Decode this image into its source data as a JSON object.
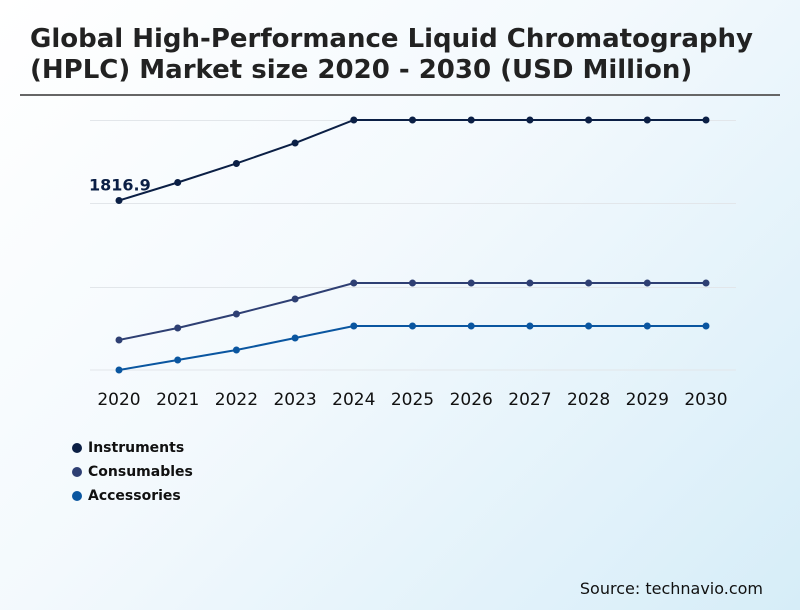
{
  "chart_data": {
    "type": "line",
    "title": "Global High-Performance Liquid Chromatography (HPLC) Market size 2020 - 2030 (USD Million)",
    "x": [
      "2020",
      "2021",
      "2022",
      "2023",
      "2024",
      "2025",
      "2026",
      "2027",
      "2028",
      "2029",
      "2030"
    ],
    "series": [
      {
        "name": "Instruments",
        "color": "#0b1f45",
        "values": [
          1816.9,
          2010,
          2214,
          2433,
          2680,
          2680,
          2680,
          2680,
          2680,
          2680,
          2680
        ]
      },
      {
        "name": "Consumables",
        "color": "#2e3f73",
        "values": [
          322,
          450,
          600,
          761,
          932,
          932,
          932,
          932,
          932,
          932,
          932
        ]
      },
      {
        "name": "Accessories",
        "color": "#0a56a0",
        "values": [
          0,
          107,
          214,
          343,
          472,
          472,
          472,
          472,
          472,
          472,
          472
        ]
      }
    ],
    "annotations": [
      {
        "series": "Instruments",
        "x": "2020",
        "label": "1816.9"
      }
    ],
    "ylim": [
      0,
      2680
    ],
    "grid": true,
    "legend": "bottom-left"
  },
  "source": "Source: technavio.com"
}
